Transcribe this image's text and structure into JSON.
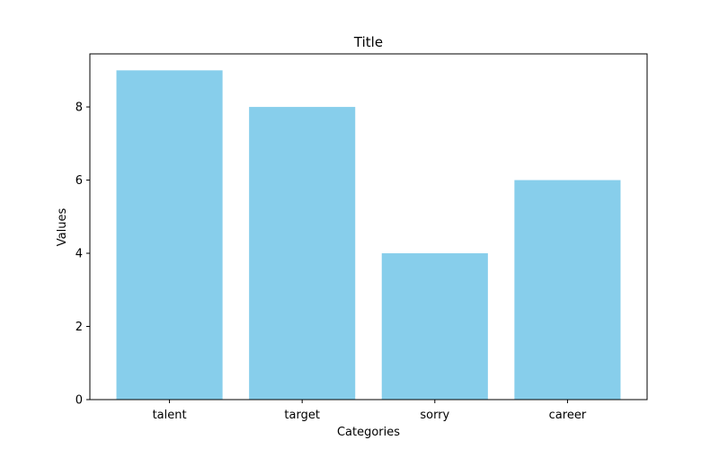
{
  "chart_data": {
    "type": "bar",
    "title": "Title",
    "xlabel": "Categories",
    "ylabel": "Values",
    "categories": [
      "talent",
      "target",
      "sorry",
      "career"
    ],
    "values": [
      9,
      8,
      4,
      6
    ],
    "ylim": [
      0,
      9.45
    ],
    "yticks": [
      0,
      2,
      4,
      6,
      8
    ],
    "grid": false,
    "bar_color": "#87CEEB"
  }
}
